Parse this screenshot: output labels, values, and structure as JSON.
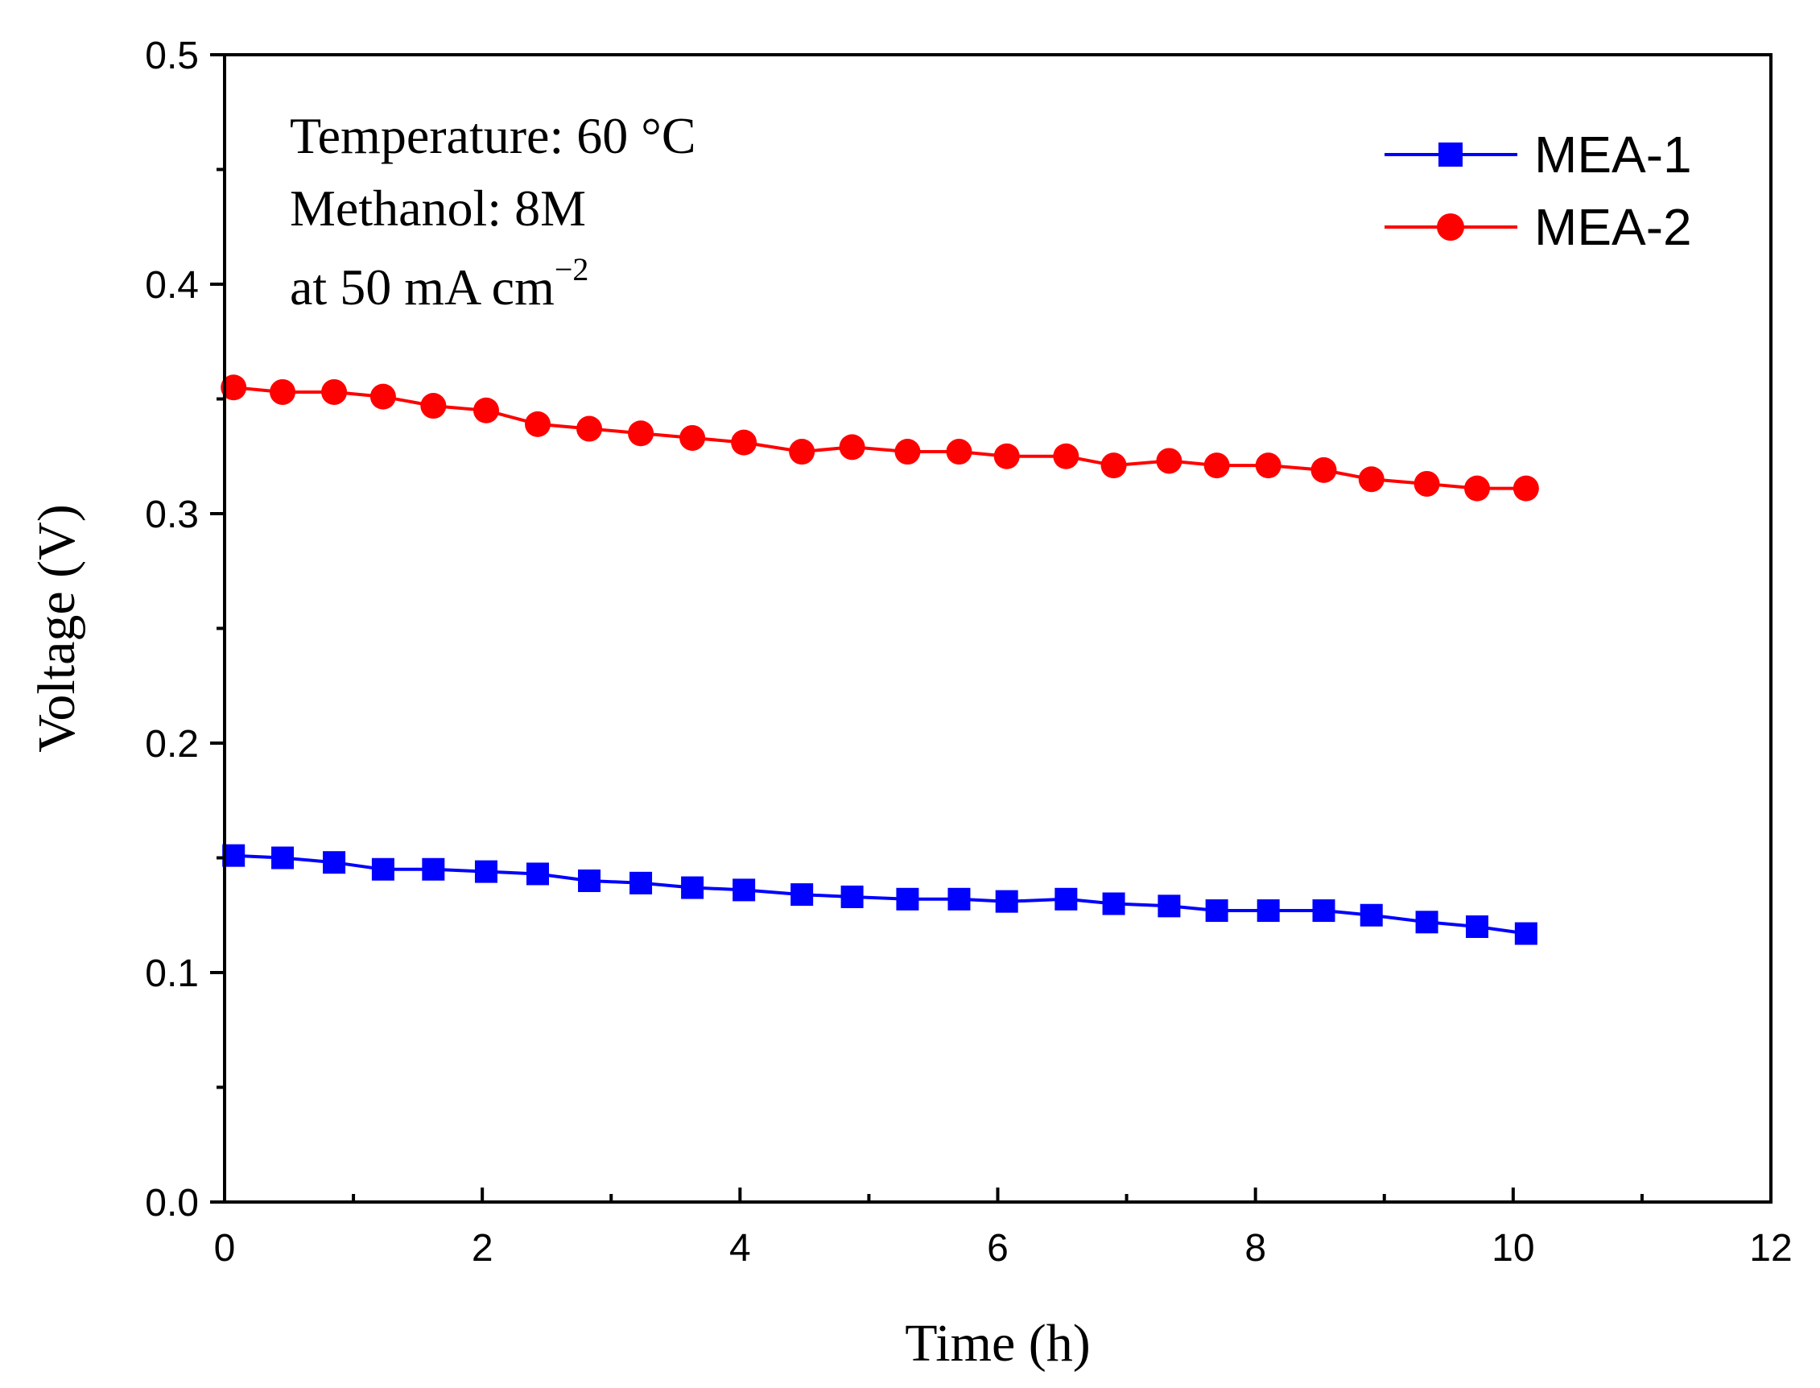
{
  "chart_data": {
    "type": "line",
    "xlabel": "Time (h)",
    "ylabel": "Voltage (V)",
    "xlim": [
      0,
      12
    ],
    "ylim": [
      0.0,
      0.5
    ],
    "x_ticks": [
      "0",
      "2",
      "4",
      "6",
      "8",
      "10",
      "12"
    ],
    "y_ticks": [
      "0.0",
      "0.1",
      "0.2",
      "0.3",
      "0.4",
      "0.5"
    ],
    "grid": false,
    "legend_position": "top-right",
    "annotations": {
      "line1": "Temperature: 60 °C",
      "line2": "Methanol: 8M",
      "line3_main": "at 50 mA cm",
      "line3_sup": "−2"
    },
    "x": [
      0.07,
      0.45,
      0.85,
      1.23,
      1.62,
      2.03,
      2.43,
      2.83,
      3.23,
      3.63,
      4.03,
      4.48,
      4.87,
      5.3,
      5.7,
      6.07,
      6.53,
      6.9,
      7.33,
      7.7,
      8.1,
      8.53,
      8.9,
      9.33,
      9.72,
      10.1
    ],
    "series": [
      {
        "name": "MEA-1",
        "color": "#0000ff",
        "marker": "square",
        "values": [
          0.151,
          0.15,
          0.148,
          0.145,
          0.145,
          0.144,
          0.143,
          0.14,
          0.139,
          0.137,
          0.136,
          0.134,
          0.133,
          0.132,
          0.132,
          0.131,
          0.132,
          0.13,
          0.129,
          0.127,
          0.127,
          0.127,
          0.125,
          0.122,
          0.12,
          0.117
        ]
      },
      {
        "name": "MEA-2",
        "color": "#ff0000",
        "marker": "circle",
        "values": [
          0.355,
          0.353,
          0.353,
          0.351,
          0.347,
          0.345,
          0.339,
          0.337,
          0.335,
          0.333,
          0.331,
          0.327,
          0.329,
          0.327,
          0.327,
          0.325,
          0.325,
          0.321,
          0.323,
          0.321,
          0.321,
          0.319,
          0.315,
          0.313,
          0.311,
          0.311
        ]
      }
    ]
  }
}
